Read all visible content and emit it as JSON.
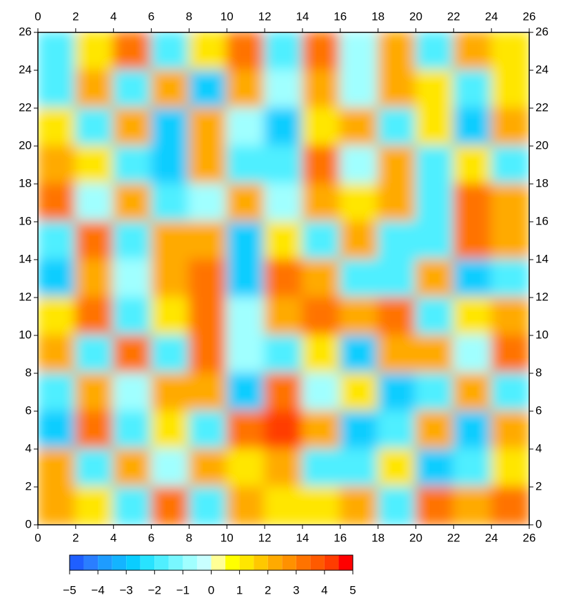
{
  "chart_data": {
    "type": "contour",
    "xlim": [
      0,
      26
    ],
    "ylim": [
      0,
      26
    ],
    "xticks": [
      0,
      2,
      4,
      6,
      8,
      10,
      12,
      14,
      16,
      18,
      20,
      22,
      24,
      26
    ],
    "yticks": [
      0,
      2,
      4,
      6,
      8,
      10,
      12,
      14,
      16,
      18,
      20,
      22,
      24,
      26
    ],
    "x": [
      1,
      3,
      5,
      7,
      9,
      11,
      13,
      15,
      17,
      19,
      21,
      23,
      25
    ],
    "y": [
      25,
      23,
      21,
      19,
      17,
      15,
      13,
      11,
      9,
      7,
      5,
      3,
      1
    ],
    "z": [
      [
        -2,
        1,
        3,
        -2,
        1,
        3,
        -2,
        3,
        -1,
        2,
        -2,
        2,
        1
      ],
      [
        -2,
        2,
        -2,
        2,
        -3,
        2,
        -1,
        2,
        -1,
        2,
        1,
        -2,
        1
      ],
      [
        1,
        -2,
        2,
        -3,
        2,
        -1,
        -3,
        1,
        2,
        -2,
        1,
        -3,
        2
      ],
      [
        2,
        1,
        -2,
        -3,
        2,
        -2,
        -2,
        3,
        -1,
        2,
        -2,
        1,
        -2
      ],
      [
        3,
        -1,
        2,
        -2,
        -1,
        2,
        -1,
        2,
        1,
        2,
        -2,
        3,
        2
      ],
      [
        -2,
        3,
        -2,
        2,
        2,
        -3,
        1,
        -2,
        2,
        -2,
        -2,
        3,
        2
      ],
      [
        -3,
        2,
        -1,
        2,
        3,
        -3,
        3,
        2,
        -2,
        -2,
        2,
        -3,
        -2
      ],
      [
        1,
        3,
        -2,
        1,
        3,
        -1,
        2,
        3,
        2,
        3,
        -2,
        1,
        2
      ],
      [
        2,
        -2,
        3,
        -2,
        3,
        -1,
        -2,
        1,
        -3,
        2,
        2,
        -1,
        3
      ],
      [
        -2,
        2,
        -1,
        2,
        2,
        -3,
        3,
        -1,
        1,
        -3,
        -2,
        2,
        -2
      ],
      [
        -3,
        3,
        -2,
        1,
        -2,
        3,
        4,
        2,
        -3,
        -2,
        2,
        -3,
        2
      ],
      [
        2,
        -2,
        2,
        -1,
        2,
        1,
        2,
        -2,
        -2,
        1,
        -3,
        -2,
        1
      ],
      [
        2,
        1,
        -2,
        3,
        -2,
        2,
        1,
        1,
        2,
        -2,
        3,
        2,
        3
      ]
    ],
    "colorbar": {
      "levels": [
        -5,
        -4.5,
        -4,
        -3.5,
        -3,
        -2.5,
        -2,
        -1.5,
        -1,
        -0.5,
        0,
        0.5,
        1,
        1.5,
        2,
        2.5,
        3,
        3.5,
        4,
        4.5,
        5
      ],
      "colors": [
        "#1f5fff",
        "#2a7eff",
        "#1e9cff",
        "#14b4ff",
        "#0acdff",
        "#28e3ff",
        "#50efff",
        "#78f7ff",
        "#a0ffff",
        "#c8ffff",
        "#ffff96",
        "#ffff00",
        "#ffe600",
        "#ffc800",
        "#ffaa00",
        "#ff9100",
        "#ff7300",
        "#ff5a00",
        "#ff3c00",
        "#ff0000"
      ],
      "ticks": [
        {
          "value": -5,
          "label": "−5"
        },
        {
          "value": -4,
          "label": "−4"
        },
        {
          "value": -3,
          "label": "−3"
        },
        {
          "value": -2,
          "label": "−2"
        },
        {
          "value": -1,
          "label": "−1"
        },
        0,
        1,
        2,
        3,
        4,
        5
      ]
    }
  }
}
